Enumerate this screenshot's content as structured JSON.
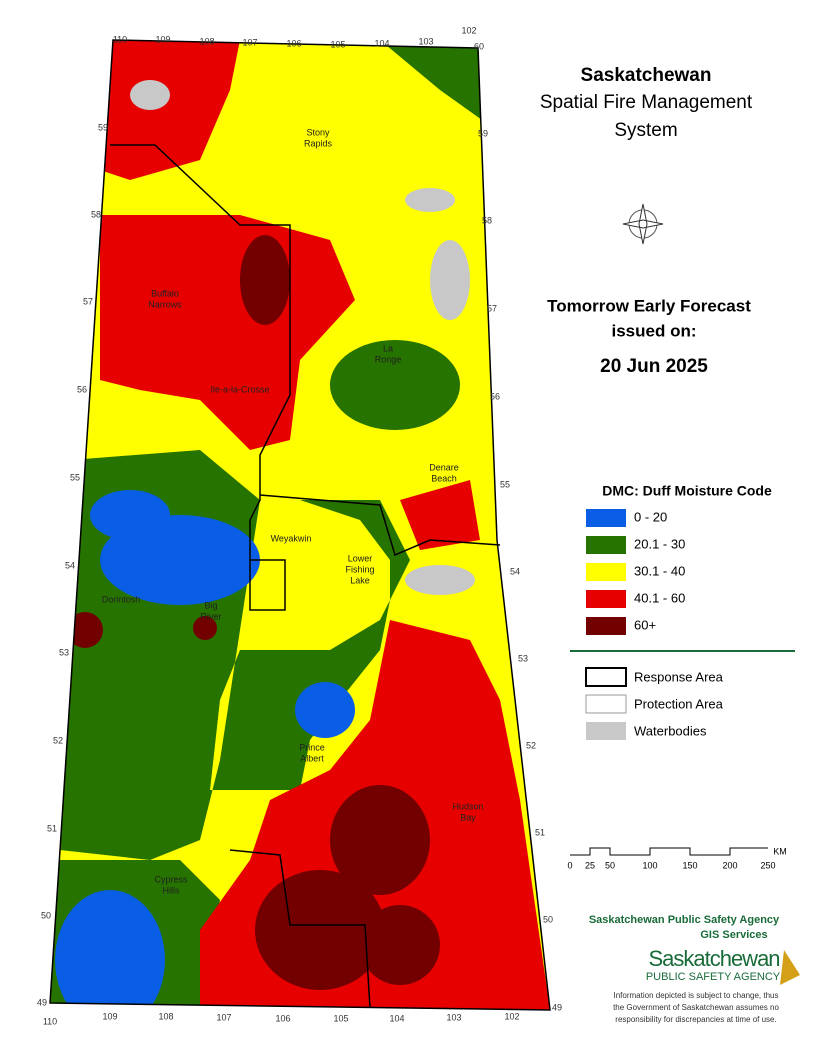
{
  "header": {
    "title": "Saskatchewan",
    "subtitle": [
      "Spatial Fire Management",
      "System"
    ]
  },
  "forecast": {
    "heading": [
      "Tomorrow Early Forecast",
      "issued on:"
    ],
    "date": "20 Jun 2025"
  },
  "legend": {
    "title": "DMC: Duff Moisture Code",
    "items": [
      {
        "label": "0 - 20",
        "color": "#0a5ee6"
      },
      {
        "label": "20.1 - 30",
        "color": "#267300"
      },
      {
        "label": "30.1 - 40",
        "color": "#ffff00"
      },
      {
        "label": "40.1 - 60",
        "color": "#e60000"
      },
      {
        "label": "60+",
        "color": "#730000"
      }
    ]
  },
  "boundaries": {
    "items": [
      "Response Area",
      "Protection Area",
      "Waterbodies"
    ]
  },
  "scale": {
    "ticks": [
      "0",
      "25",
      "50",
      "100",
      "150",
      "200",
      "250"
    ],
    "unit": "KM"
  },
  "graticule": {
    "lon_top": [
      "110",
      "109",
      "108",
      "107",
      "106",
      "105",
      "104",
      "103",
      "102"
    ],
    "lon_bottom": [
      "110",
      "109",
      "108",
      "107",
      "106",
      "105",
      "104",
      "103",
      "102"
    ],
    "lat_left": [
      "59",
      "58",
      "57",
      "56",
      "55",
      "54",
      "53",
      "52",
      "51",
      "50",
      "49"
    ],
    "lat_right": [
      "60",
      "59",
      "58",
      "57",
      "56",
      "55",
      "54",
      "53",
      "52",
      "51",
      "50",
      "49"
    ]
  },
  "places": [
    [
      "Stony",
      "Rapids"
    ],
    [
      "Buffalo",
      "Narrows"
    ],
    [
      "Ile-a-la-Crosse"
    ],
    [
      "La",
      "Ronge"
    ],
    [
      "Denare",
      "Beach"
    ],
    [
      "Weyakwin"
    ],
    [
      "Lower",
      "Fishing",
      "Lake"
    ],
    [
      "Dorintosh"
    ],
    [
      "Big",
      "River"
    ],
    [
      "Prince",
      "Albert"
    ],
    [
      "Hudson",
      "Bay"
    ],
    [
      "Cypress",
      "Hills"
    ]
  ],
  "footer": {
    "agency": "Saskatchewan Public Safety Agency",
    "unit": "GIS  Services",
    "logo": [
      "Saskatchewan",
      "PUBLIC SAFETY AGENCY"
    ],
    "disclaimer": [
      "Information depicted is subject to change, thus",
      "the Government of Saskatchewan assumes no",
      "responsibility for discrepancies at time of use."
    ]
  }
}
